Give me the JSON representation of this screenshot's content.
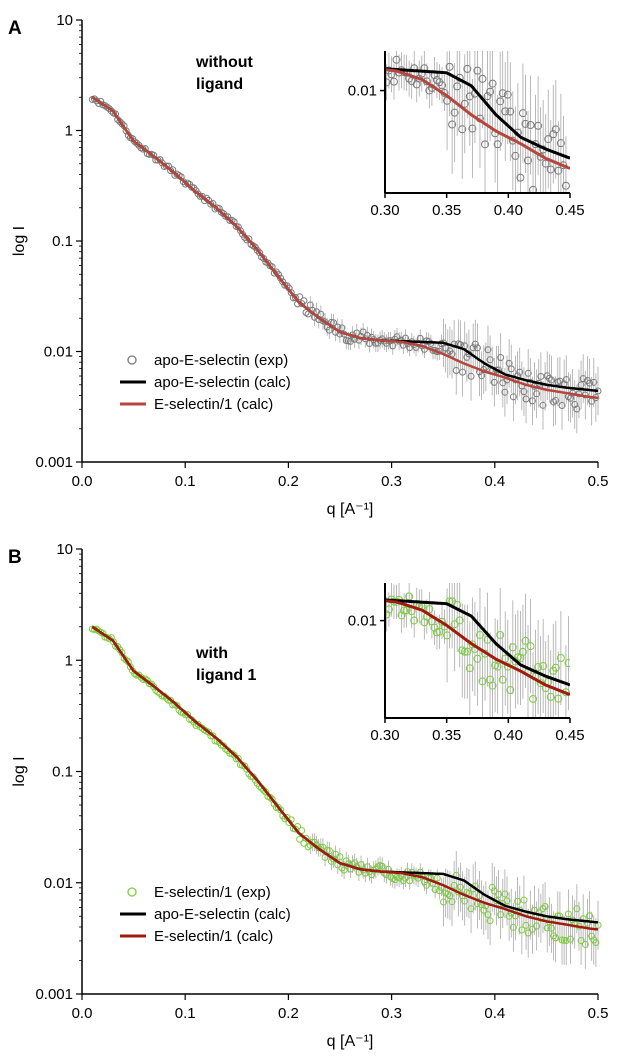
{
  "chart_data": [
    {
      "type": "scatter",
      "panel": "A",
      "annotation": [
        "without",
        "ligand"
      ],
      "xlabel": "q [A⁻¹]",
      "ylabel": "log I",
      "xlim": [
        0,
        0.5
      ],
      "ylim": [
        0.001,
        10
      ],
      "yscale": "log",
      "xticks": [
        "0.0",
        "0.1",
        "0.2",
        "0.3",
        "0.4",
        "0.5"
      ],
      "yticks": [
        "0.001",
        "0.01",
        "0.1",
        "1",
        "10"
      ],
      "legend_position": "bottom-left",
      "series": [
        {
          "name": "apo-E-selectin (exp)",
          "kind": "points",
          "color": "#7a7a7a",
          "fill": "none",
          "x": [
            0.01,
            0.03,
            0.05,
            0.07,
            0.09,
            0.11,
            0.13,
            0.15,
            0.17,
            0.19,
            0.21,
            0.23,
            0.25,
            0.27,
            0.29,
            0.31,
            0.33,
            0.35,
            0.37,
            0.39,
            0.41,
            0.43,
            0.45,
            0.47,
            0.49
          ],
          "y": [
            2.0,
            1.5,
            0.8,
            0.58,
            0.41,
            0.28,
            0.2,
            0.135,
            0.083,
            0.048,
            0.028,
            0.02,
            0.015,
            0.0132,
            0.0126,
            0.0124,
            0.0116,
            0.0104,
            0.0092,
            0.0075,
            0.0058,
            0.0047,
            0.0046,
            0.0043,
            0.0039
          ]
        },
        {
          "name": "apo-E-selectin (calc)",
          "kind": "line",
          "color": "#000000",
          "x": [
            0.01,
            0.03,
            0.05,
            0.07,
            0.09,
            0.11,
            0.13,
            0.15,
            0.17,
            0.19,
            0.21,
            0.23,
            0.25,
            0.27,
            0.29,
            0.31,
            0.33,
            0.35,
            0.37,
            0.39,
            0.41,
            0.43,
            0.45,
            0.47,
            0.49,
            0.5
          ],
          "y": [
            2.0,
            1.5,
            0.8,
            0.58,
            0.41,
            0.28,
            0.2,
            0.135,
            0.083,
            0.048,
            0.028,
            0.02,
            0.015,
            0.0132,
            0.0126,
            0.0124,
            0.0122,
            0.012,
            0.0105,
            0.0078,
            0.0062,
            0.0055,
            0.005,
            0.0047,
            0.0045,
            0.0044
          ]
        },
        {
          "name": "E-selectin/1 (calc)",
          "kind": "line",
          "color": "#b8453c",
          "x": [
            0.01,
            0.03,
            0.05,
            0.07,
            0.09,
            0.11,
            0.13,
            0.15,
            0.17,
            0.19,
            0.21,
            0.23,
            0.25,
            0.27,
            0.29,
            0.31,
            0.33,
            0.35,
            0.37,
            0.39,
            0.41,
            0.43,
            0.45,
            0.47,
            0.49,
            0.5
          ],
          "y": [
            2.0,
            1.5,
            0.8,
            0.58,
            0.41,
            0.28,
            0.2,
            0.135,
            0.083,
            0.048,
            0.028,
            0.02,
            0.015,
            0.0132,
            0.0126,
            0.0122,
            0.0112,
            0.0095,
            0.0078,
            0.0066,
            0.0058,
            0.005,
            0.0045,
            0.0042,
            0.0039,
            0.0038
          ]
        }
      ],
      "inset": {
        "xlim": [
          0.3,
          0.45
        ],
        "ylim": [
          0.0035,
          0.015
        ],
        "yscale": "log",
        "xticks": [
          "0.30",
          "0.35",
          "0.40",
          "0.45"
        ],
        "yticks": [
          "0.01"
        ]
      }
    },
    {
      "type": "scatter",
      "panel": "B",
      "annotation": [
        "with",
        "ligand 1"
      ],
      "xlabel": "q [A⁻¹]",
      "ylabel": "log I",
      "xlim": [
        0,
        0.5
      ],
      "ylim": [
        0.001,
        10
      ],
      "yscale": "log",
      "xticks": [
        "0.0",
        "0.1",
        "0.2",
        "0.3",
        "0.4",
        "0.5"
      ],
      "yticks": [
        "0.001",
        "0.01",
        "0.1",
        "1",
        "10"
      ],
      "legend_position": "bottom-left",
      "series": [
        {
          "name": "E-selectin/1 (exp)",
          "kind": "points",
          "color": "#7ccd3c",
          "fill": "none",
          "x": [
            0.01,
            0.03,
            0.05,
            0.07,
            0.09,
            0.11,
            0.13,
            0.15,
            0.17,
            0.19,
            0.21,
            0.23,
            0.25,
            0.27,
            0.29,
            0.31,
            0.33,
            0.35,
            0.37,
            0.39,
            0.41,
            0.43,
            0.45,
            0.47,
            0.49
          ],
          "y": [
            2.0,
            1.5,
            0.8,
            0.56,
            0.4,
            0.27,
            0.19,
            0.13,
            0.08,
            0.046,
            0.028,
            0.02,
            0.015,
            0.013,
            0.0125,
            0.0121,
            0.0108,
            0.0093,
            0.0078,
            0.0068,
            0.0058,
            0.005,
            0.0046,
            0.0042,
            0.0039
          ]
        },
        {
          "name": "apo-E-selectin (calc)",
          "kind": "line",
          "color": "#000000",
          "x": [
            0.01,
            0.03,
            0.05,
            0.07,
            0.09,
            0.11,
            0.13,
            0.15,
            0.17,
            0.19,
            0.21,
            0.23,
            0.25,
            0.27,
            0.29,
            0.31,
            0.33,
            0.35,
            0.37,
            0.39,
            0.41,
            0.43,
            0.45,
            0.47,
            0.49,
            0.5
          ],
          "y": [
            2.0,
            1.5,
            0.8,
            0.58,
            0.41,
            0.28,
            0.2,
            0.135,
            0.083,
            0.048,
            0.028,
            0.02,
            0.015,
            0.0132,
            0.0126,
            0.0124,
            0.0122,
            0.012,
            0.0105,
            0.0078,
            0.0062,
            0.0055,
            0.005,
            0.0047,
            0.0045,
            0.0044
          ]
        },
        {
          "name": "E-selectin/1 (calc)",
          "kind": "line",
          "color": "#a01a0e",
          "x": [
            0.01,
            0.03,
            0.05,
            0.07,
            0.09,
            0.11,
            0.13,
            0.15,
            0.17,
            0.19,
            0.21,
            0.23,
            0.25,
            0.27,
            0.29,
            0.31,
            0.33,
            0.35,
            0.37,
            0.39,
            0.41,
            0.43,
            0.45,
            0.47,
            0.49,
            0.5
          ],
          "y": [
            2.0,
            1.5,
            0.8,
            0.58,
            0.41,
            0.28,
            0.2,
            0.135,
            0.083,
            0.048,
            0.028,
            0.02,
            0.015,
            0.0132,
            0.0126,
            0.0122,
            0.0112,
            0.0095,
            0.0078,
            0.0066,
            0.0058,
            0.005,
            0.0045,
            0.0042,
            0.0039,
            0.0038
          ]
        }
      ],
      "inset": {
        "xlim": [
          0.3,
          0.45
        ],
        "ylim": [
          0.0035,
          0.015
        ],
        "yscale": "log",
        "xticks": [
          "0.30",
          "0.35",
          "0.40",
          "0.45"
        ],
        "yticks": [
          "0.01"
        ]
      }
    }
  ]
}
